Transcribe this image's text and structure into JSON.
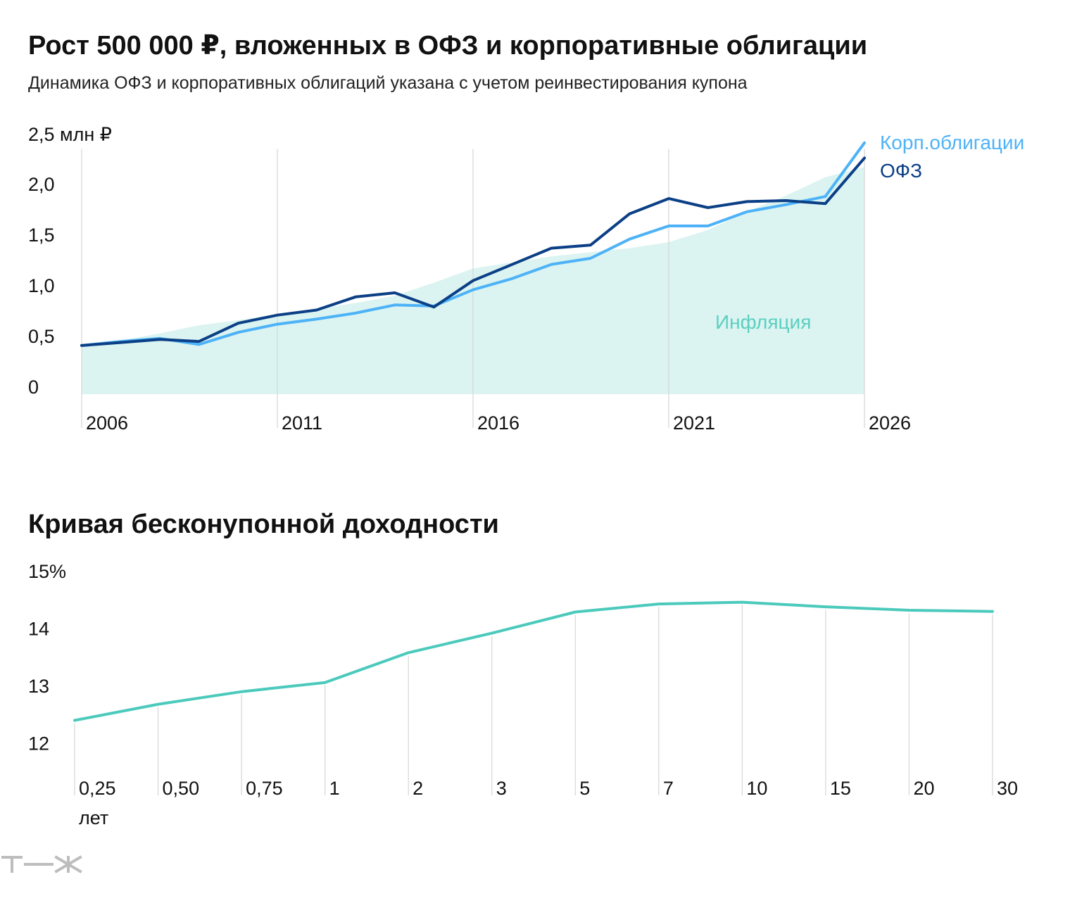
{
  "colors": {
    "ofz": "#0b3f86",
    "corp": "#4db2f7",
    "inflation_fill": "#dbf4f1",
    "inflation_text": "#5ccfc1",
    "yield_line": "#4bcabc",
    "grid": "#d6d6d6",
    "logo": "#bdbdbd"
  },
  "logo_icon": "tzh-logo",
  "chart_data": [
    {
      "type": "line",
      "title": "Рост 500 000 ₽, вложенных в ОФЗ и корпоративные облигации",
      "subtitle": "Динамика ОФЗ и корпоративных облигаций указана с учетом реинвестирования купона",
      "ylim": [
        0,
        2.5
      ],
      "y_unit": "млн ₽",
      "y_ticks": [
        {
          "value": 0,
          "label": "0"
        },
        {
          "value": 0.5,
          "label": "0,5"
        },
        {
          "value": 1.0,
          "label": "1,0"
        },
        {
          "value": 1.5,
          "label": "1,5"
        },
        {
          "value": 2.0,
          "label": "2,0"
        },
        {
          "value": 2.5,
          "label": "2,5 млн ₽"
        }
      ],
      "xlim": [
        2006,
        2026
      ],
      "x_ticks": [
        {
          "value": 2006,
          "label": "2006"
        },
        {
          "value": 2011,
          "label": "2011"
        },
        {
          "value": 2016,
          "label": "2016"
        },
        {
          "value": 2021,
          "label": "2021"
        },
        {
          "value": 2026,
          "label": "2026"
        }
      ],
      "grid": "vertical",
      "series": [
        {
          "name": "ОФЗ",
          "type": "line",
          "x": [
            2006,
            2007,
            2008,
            2009,
            2010,
            2011,
            2012,
            2013,
            2014,
            2015,
            2016,
            2017,
            2018,
            2019,
            2020,
            2021,
            2022,
            2023,
            2024,
            2025,
            2026
          ],
          "y": [
            0.48,
            0.51,
            0.54,
            0.52,
            0.7,
            0.78,
            0.83,
            0.96,
            1.0,
            0.86,
            1.12,
            1.28,
            1.44,
            1.47,
            1.78,
            1.93,
            1.84,
            1.9,
            1.91,
            1.88,
            2.33
          ]
        },
        {
          "name": "Корп.облигации",
          "type": "line",
          "x": [
            2006,
            2007,
            2008,
            2009,
            2010,
            2011,
            2012,
            2013,
            2014,
            2015,
            2016,
            2017,
            2018,
            2019,
            2020,
            2021,
            2022,
            2023,
            2024,
            2025,
            2026
          ],
          "y": [
            0.48,
            0.52,
            0.55,
            0.49,
            0.61,
            0.69,
            0.74,
            0.8,
            0.88,
            0.87,
            1.03,
            1.14,
            1.28,
            1.34,
            1.53,
            1.66,
            1.66,
            1.8,
            1.87,
            1.95,
            2.48
          ]
        },
        {
          "name": "Инфляция",
          "type": "area",
          "x": [
            2006,
            2007,
            2008,
            2009,
            2010,
            2011,
            2012,
            2013,
            2014,
            2015,
            2016,
            2017,
            2018,
            2019,
            2020,
            2021,
            2022,
            2023,
            2024,
            2025,
            2026
          ],
          "y": [
            0.48,
            0.53,
            0.6,
            0.68,
            0.73,
            0.79,
            0.84,
            0.9,
            0.97,
            1.1,
            1.24,
            1.3,
            1.36,
            1.4,
            1.44,
            1.5,
            1.62,
            1.8,
            1.96,
            2.14,
            2.24
          ]
        }
      ],
      "legend": "inline-right",
      "annotations": [
        {
          "text": "Инфляция",
          "series": "Инфляция"
        }
      ]
    },
    {
      "type": "line",
      "title": "Кривая бесконупонной доходности",
      "ylim": [
        11.6,
        15.0
      ],
      "y_ticks": [
        {
          "value": 12,
          "label": "12"
        },
        {
          "value": 13,
          "label": "13"
        },
        {
          "value": 14,
          "label": "14"
        },
        {
          "value": 15,
          "label": "15%"
        }
      ],
      "categories": [
        "0,25",
        "0,50",
        "0,75",
        "1",
        "2",
        "3",
        "5",
        "7",
        "10",
        "15",
        "20",
        "30"
      ],
      "x_unit": "лет",
      "values": [
        12.38,
        12.66,
        12.88,
        13.04,
        13.56,
        13.9,
        14.27,
        14.41,
        14.44,
        14.36,
        14.3,
        14.28
      ],
      "grid": "vertical"
    }
  ]
}
